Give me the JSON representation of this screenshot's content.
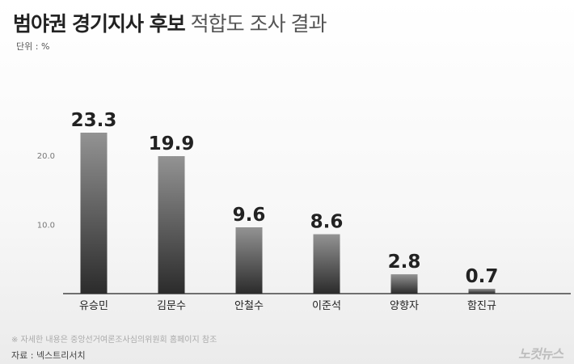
{
  "header": {
    "title_part1": "범야권",
    "title_part2": "경기지사 후보",
    "title_part3": "적합도 조사 결과",
    "unit": "단위 : %"
  },
  "chart_data": {
    "type": "bar",
    "categories": [
      "유승민",
      "김문수",
      "안철수",
      "이준석",
      "양향자",
      "함진규"
    ],
    "values": [
      23.3,
      19.9,
      9.6,
      8.6,
      2.8,
      0.7
    ],
    "value_labels": [
      "23.3",
      "19.9",
      "9.6",
      "8.6",
      "2.8",
      "0.7"
    ],
    "ytick_labels": [
      "10.0",
      "20.0"
    ],
    "yticks": [
      10,
      20
    ],
    "ylim": [
      0,
      23.3
    ],
    "grid": false,
    "bar_gradient": [
      "#939393",
      "#2b2b2b"
    ]
  },
  "footer": {
    "note": "※ 자세한 내용은 중앙선거여론조사심의위원회 홈페이지 참조",
    "source": "자료 : 넥스트리서치",
    "logo_text": "노컷뉴스"
  }
}
